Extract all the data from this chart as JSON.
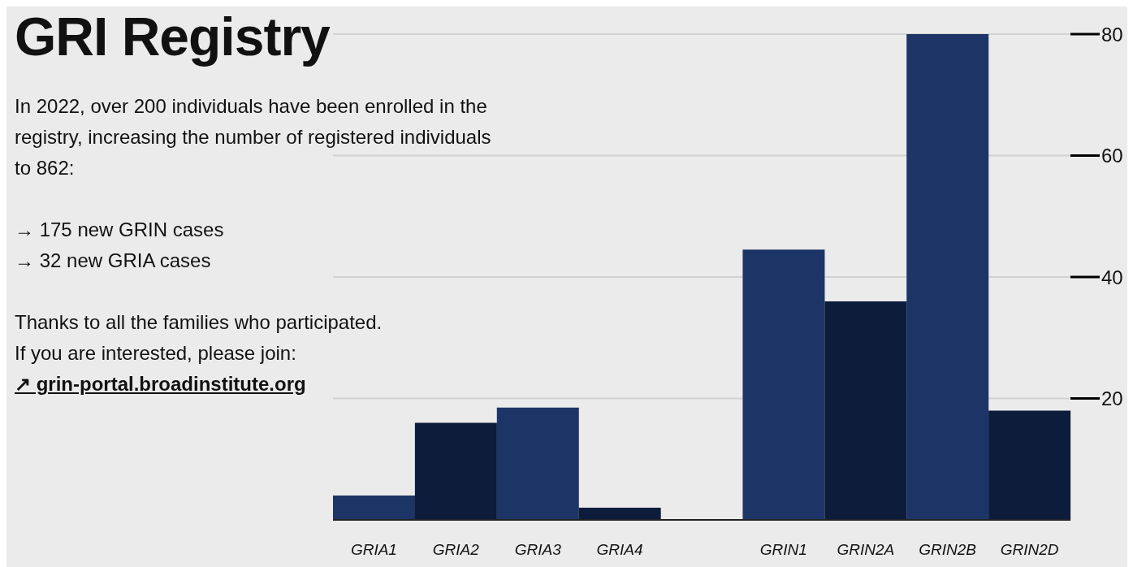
{
  "chart_data": {
    "type": "bar",
    "title": "GRI Registry",
    "annotations": [
      "In 2022, over 200 individuals have been enrolled in the registry, increasing the number of registered individuals to 862:",
      "→ 175 new GRIN cases",
      "→ 32 new GRIA cases",
      "Thanks to all the families who participated.",
      "If you are interested, please join:",
      "↗ grin-portal.broadinstitute.org"
    ],
    "categories": [
      "GRIA1",
      "GRIA2",
      "GRIA3",
      "GRIA4",
      null,
      "GRIN1",
      "GRIN2A",
      "GRIN2B",
      "GRIN2D"
    ],
    "values": [
      4,
      16,
      18.5,
      2,
      null,
      44.5,
      36,
      80,
      18
    ],
    "colors": [
      "#1d3566",
      "#0d1c3a",
      "#1d3566",
      "#0d1c3a",
      "#1d3566",
      "#1d3566",
      "#0d1c3a",
      "#1d3566",
      "#0d1c3a"
    ],
    "ylim": [
      0,
      80
    ],
    "yticks": [
      20,
      40,
      60,
      80
    ],
    "grid": "y",
    "legend": false
  }
}
